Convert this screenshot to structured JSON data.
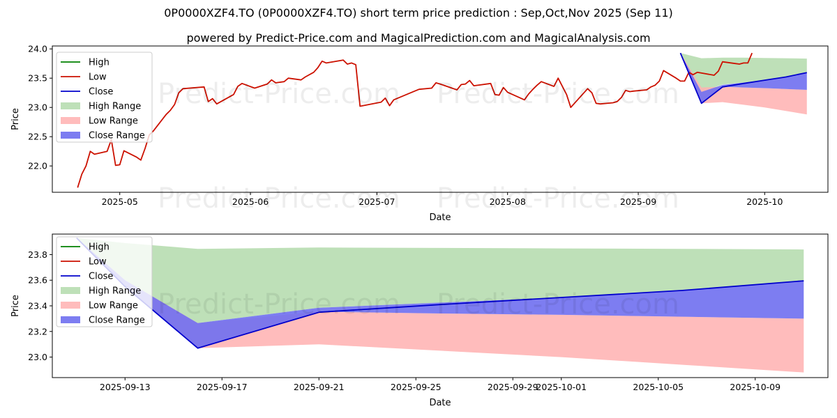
{
  "title": "0P0000XZF4.TO (0P0000XZF4.TO) short term price prediction : Sep,Oct,Nov 2025 (Sep 11)",
  "subtitle": "powered by Predict-Price.com and MagicalPrediction.com and MagicalAnalysis.com",
  "watermark": "Predict-Price.com",
  "colors": {
    "high": "#008000",
    "low": "#cc1100",
    "close": "#0000cc",
    "high_range": "#a8d5a0",
    "low_range": "#ffb0b0",
    "close_range": "#6f6ff0"
  },
  "legend": [
    "High",
    "Low",
    "Close",
    "High Range",
    "Low Range",
    "Close Range"
  ],
  "chart_data": [
    {
      "type": "line",
      "name": "full-period",
      "xlabel": "Date",
      "ylabel": "Price",
      "xlim": [
        "2025-04-15",
        "2025-10-16"
      ],
      "ylim": [
        21.55,
        24.05
      ],
      "xticks": [
        {
          "date": "2025-05-01",
          "label": "2025-05"
        },
        {
          "date": "2025-06-01",
          "label": "2025-06"
        },
        {
          "date": "2025-07-01",
          "label": "2025-07"
        },
        {
          "date": "2025-08-01",
          "label": "2025-08"
        },
        {
          "date": "2025-09-01",
          "label": "2025-09"
        },
        {
          "date": "2025-10-01",
          "label": "2025-10"
        }
      ],
      "yticks": [
        22.0,
        22.5,
        23.0,
        23.5,
        24.0
      ],
      "history_low": [
        [
          "2025-04-21",
          21.63
        ],
        [
          "2025-04-22",
          21.86
        ],
        [
          "2025-04-23",
          22.0
        ],
        [
          "2025-04-24",
          22.25
        ],
        [
          "2025-04-25",
          22.2
        ],
        [
          "2025-04-28",
          22.25
        ],
        [
          "2025-04-29",
          22.45
        ],
        [
          "2025-04-30",
          22.01
        ],
        [
          "2025-05-01",
          22.02
        ],
        [
          "2025-05-02",
          22.26
        ],
        [
          "2025-05-05",
          22.15
        ],
        [
          "2025-05-06",
          22.1
        ],
        [
          "2025-05-07",
          22.3
        ],
        [
          "2025-05-08",
          22.53
        ],
        [
          "2025-05-09",
          22.6
        ],
        [
          "2025-05-12",
          22.88
        ],
        [
          "2025-05-13",
          22.95
        ],
        [
          "2025-05-14",
          23.05
        ],
        [
          "2025-05-15",
          23.25
        ],
        [
          "2025-05-16",
          23.32
        ],
        [
          "2025-05-21",
          23.35
        ],
        [
          "2025-05-22",
          23.1
        ],
        [
          "2025-05-23",
          23.15
        ],
        [
          "2025-05-24",
          23.06
        ],
        [
          "2025-05-28",
          23.22
        ],
        [
          "2025-05-29",
          23.36
        ],
        [
          "2025-05-30",
          23.41
        ],
        [
          "2025-06-02",
          23.33
        ],
        [
          "2025-06-05",
          23.4
        ],
        [
          "2025-06-06",
          23.47
        ],
        [
          "2025-06-07",
          23.42
        ],
        [
          "2025-06-09",
          23.44
        ],
        [
          "2025-06-10",
          23.5
        ],
        [
          "2025-06-13",
          23.47
        ],
        [
          "2025-06-14",
          23.52
        ],
        [
          "2025-06-16",
          23.6
        ],
        [
          "2025-06-17",
          23.68
        ],
        [
          "2025-06-18",
          23.79
        ],
        [
          "2025-06-19",
          23.76
        ],
        [
          "2025-06-23",
          23.81
        ],
        [
          "2025-06-24",
          23.74
        ],
        [
          "2025-06-25",
          23.76
        ],
        [
          "2025-06-26",
          23.73
        ],
        [
          "2025-06-27",
          23.02
        ],
        [
          "2025-07-02",
          23.09
        ],
        [
          "2025-07-03",
          23.16
        ],
        [
          "2025-07-04",
          23.03
        ],
        [
          "2025-07-05",
          23.13
        ],
        [
          "2025-07-09",
          23.25
        ],
        [
          "2025-07-10",
          23.28
        ],
        [
          "2025-07-11",
          23.31
        ],
        [
          "2025-07-14",
          23.33
        ],
        [
          "2025-07-15",
          23.42
        ],
        [
          "2025-07-16",
          23.4
        ],
        [
          "2025-07-20",
          23.3
        ],
        [
          "2025-07-21",
          23.39
        ],
        [
          "2025-07-22",
          23.4
        ],
        [
          "2025-07-23",
          23.46
        ],
        [
          "2025-07-24",
          23.37
        ],
        [
          "2025-07-28",
          23.41
        ],
        [
          "2025-07-29",
          23.22
        ],
        [
          "2025-07-30",
          23.21
        ],
        [
          "2025-07-31",
          23.34
        ],
        [
          "2025-08-01",
          23.26
        ],
        [
          "2025-08-05",
          23.13
        ],
        [
          "2025-08-06",
          23.23
        ],
        [
          "2025-08-07",
          23.31
        ],
        [
          "2025-08-08",
          23.38
        ],
        [
          "2025-08-09",
          23.44
        ],
        [
          "2025-08-12",
          23.36
        ],
        [
          "2025-08-13",
          23.5
        ],
        [
          "2025-08-15",
          23.22
        ],
        [
          "2025-08-16",
          23.0
        ],
        [
          "2025-08-20",
          23.32
        ],
        [
          "2025-08-21",
          23.25
        ],
        [
          "2025-08-22",
          23.07
        ],
        [
          "2025-08-23",
          23.06
        ],
        [
          "2025-08-26",
          23.08
        ],
        [
          "2025-08-27",
          23.1
        ],
        [
          "2025-08-28",
          23.17
        ],
        [
          "2025-08-29",
          23.29
        ],
        [
          "2025-08-30",
          23.27
        ],
        [
          "2025-08-31",
          23.28
        ],
        [
          "2025-09-03",
          23.3
        ],
        [
          "2025-09-04",
          23.35
        ],
        [
          "2025-09-05",
          23.38
        ],
        [
          "2025-09-06",
          23.45
        ],
        [
          "2025-09-07",
          23.63
        ],
        [
          "2025-09-10",
          23.5
        ],
        [
          "2025-09-11",
          23.45
        ],
        [
          "2025-09-12",
          23.45
        ],
        [
          "2025-09-13",
          23.6
        ],
        [
          "2025-09-14",
          23.56
        ],
        [
          "2025-09-15",
          23.6
        ],
        [
          "2025-09-19",
          23.55
        ],
        [
          "2025-09-20",
          23.62
        ],
        [
          "2025-09-21",
          23.78
        ],
        [
          "2025-09-24",
          23.75
        ],
        [
          "2025-09-25",
          23.74
        ],
        [
          "2025-09-26",
          23.76
        ],
        [
          "2025-09-27",
          23.76
        ],
        [
          "2025-09-28",
          23.93
        ]
      ],
      "forecast": {
        "dates": [
          "2025-09-11",
          "2025-09-16",
          "2025-09-21",
          "2025-09-26",
          "2025-10-01",
          "2025-10-06",
          "2025-10-11"
        ],
        "high_upper": [
          23.93,
          23.84,
          23.85,
          23.85,
          23.845,
          23.84,
          23.835
        ],
        "high_lower": [
          23.93,
          23.27,
          23.39,
          23.425,
          23.455,
          23.52,
          23.595
        ],
        "low_upper": [
          23.93,
          23.34,
          23.355,
          23.34,
          23.33,
          23.315,
          23.3
        ],
        "low_lower": [
          23.93,
          23.07,
          23.09,
          23.045,
          23.0,
          22.94,
          22.88
        ],
        "close_upper": [
          23.93,
          23.265,
          23.385,
          23.425,
          23.465,
          23.52,
          23.595
        ],
        "close_lower": [
          23.93,
          23.07,
          23.355,
          23.34,
          23.33,
          23.315,
          23.3
        ],
        "close": [
          23.93,
          23.07,
          23.35,
          23.41,
          23.465,
          23.52,
          23.595
        ]
      }
    },
    {
      "type": "line",
      "name": "forecast-zoom",
      "xlabel": "Date",
      "ylabel": "Price",
      "xlim": [
        "2025-09-10",
        "2025-10-12"
      ],
      "ylim": [
        22.84,
        23.96
      ],
      "xticks": [
        {
          "date": "2025-09-13",
          "label": "2025-09-13"
        },
        {
          "date": "2025-09-17",
          "label": "2025-09-17"
        },
        {
          "date": "2025-09-21",
          "label": "2025-09-21"
        },
        {
          "date": "2025-09-25",
          "label": "2025-09-25"
        },
        {
          "date": "2025-09-29",
          "label": "2025-09-29"
        },
        {
          "date": "2025-10-01",
          "label": "2025-10-01"
        },
        {
          "date": "2025-10-05",
          "label": "2025-10-05"
        },
        {
          "date": "2025-10-09",
          "label": "2025-10-09"
        }
      ],
      "yticks": [
        23.0,
        23.2,
        23.4,
        23.6,
        23.8
      ],
      "forecast": {
        "dates": [
          "2025-09-11",
          "2025-09-13",
          "2025-09-16",
          "2025-09-21",
          "2025-09-26",
          "2025-10-01",
          "2025-10-06",
          "2025-10-11"
        ],
        "high_upper": [
          23.93,
          23.89,
          23.845,
          23.855,
          23.852,
          23.848,
          23.845,
          23.84
        ],
        "high_lower": [
          23.93,
          23.6,
          23.265,
          23.385,
          23.425,
          23.465,
          23.52,
          23.595
        ],
        "low_upper": [
          23.93,
          23.6,
          23.265,
          23.355,
          23.34,
          23.33,
          23.315,
          23.3
        ],
        "low_lower": [
          23.93,
          23.55,
          23.07,
          23.1,
          23.05,
          23.0,
          22.94,
          22.88
        ],
        "close_upper": [
          23.93,
          23.6,
          23.265,
          23.385,
          23.425,
          23.465,
          23.52,
          23.595
        ],
        "close_lower": [
          23.93,
          23.55,
          23.07,
          23.355,
          23.34,
          23.33,
          23.315,
          23.3
        ],
        "close": [
          23.93,
          23.55,
          23.07,
          23.35,
          23.41,
          23.465,
          23.52,
          23.595
        ]
      }
    }
  ]
}
